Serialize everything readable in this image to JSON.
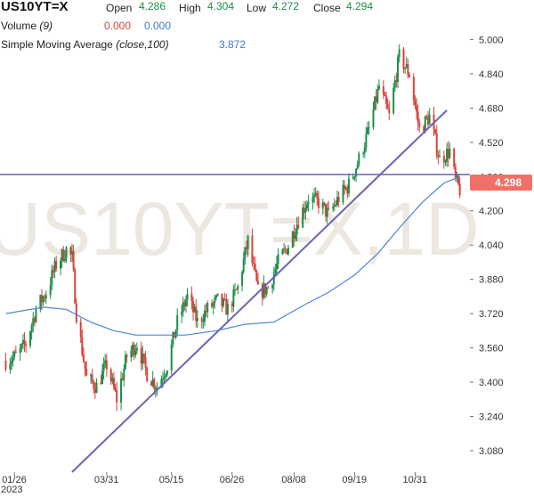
{
  "header": {
    "symbol": "US10YT=X",
    "open_label": "Open",
    "open": "4.286",
    "high_label": "High",
    "high": "4.304",
    "low_label": "Low",
    "low": "4.272",
    "close_label": "Close",
    "close": "4.294",
    "volume_label": "Volume",
    "volume_period": "(9)",
    "volume_val1": "0.000",
    "volume_val2": "0.000",
    "sma_label": "Simple Moving Average",
    "sma_params": "(close,100)",
    "sma_value": "3.872"
  },
  "watermark": "US10YT=X,1D",
  "price_badge": "4.298",
  "colors": {
    "up": "#1a8f4a",
    "down": "#d9423a",
    "sma": "#4a86d8",
    "trendline": "#6b63b5",
    "badge": "#f07067"
  },
  "chart_data": {
    "type": "candlestick",
    "interval": "1D",
    "ylim": [
      2.98,
      5.06
    ],
    "yticks": [
      "5.000",
      "4.840",
      "4.680",
      "4.520",
      "4.360",
      "4.200",
      "4.040",
      "3.880",
      "3.720",
      "3.560",
      "3.400",
      "3.240",
      "3.080"
    ],
    "xticks": [
      "01/26",
      "03/31",
      "05/15",
      "06/26",
      "08/08",
      "09/19",
      "10/31"
    ],
    "year_label": "2023",
    "horizontal_line": 4.37,
    "trendline": {
      "from": [
        "2023-03-07",
        2.98
      ],
      "to": [
        "2023-11-22",
        4.67
      ]
    },
    "sma_100": [
      [
        "2023-01-20",
        3.72
      ],
      [
        "2023-02-15",
        3.75
      ],
      [
        "2023-03-03",
        3.74
      ],
      [
        "2023-03-20",
        3.68
      ],
      [
        "2023-04-05",
        3.64
      ],
      [
        "2023-04-20",
        3.62
      ],
      [
        "2023-05-05",
        3.62
      ],
      [
        "2023-05-25",
        3.62
      ],
      [
        "2023-06-15",
        3.64
      ],
      [
        "2023-07-05",
        3.67
      ],
      [
        "2023-07-25",
        3.68
      ],
      [
        "2023-08-15",
        3.76
      ],
      [
        "2023-09-01",
        3.82
      ],
      [
        "2023-09-19",
        3.9
      ],
      [
        "2023-10-05",
        4.0
      ],
      [
        "2023-10-20",
        4.12
      ],
      [
        "2023-11-05",
        4.24
      ],
      [
        "2023-11-20",
        4.33
      ],
      [
        "2023-12-01",
        4.36
      ]
    ],
    "series": [
      {
        "date": "2023-01-20",
        "close": 3.5
      },
      {
        "date": "2023-01-27",
        "close": 3.52
      },
      {
        "date": "2023-02-03",
        "close": 3.58
      },
      {
        "date": "2023-02-10",
        "close": 3.74
      },
      {
        "date": "2023-02-17",
        "close": 3.82
      },
      {
        "date": "2023-02-24",
        "close": 3.95
      },
      {
        "date": "2023-03-03",
        "close": 4.02
      },
      {
        "date": "2023-03-07",
        "close": 3.98
      },
      {
        "date": "2023-03-10",
        "close": 3.72
      },
      {
        "date": "2023-03-17",
        "close": 3.42
      },
      {
        "date": "2023-03-24",
        "close": 3.38
      },
      {
        "date": "2023-03-31",
        "close": 3.48
      },
      {
        "date": "2023-04-07",
        "close": 3.32
      },
      {
        "date": "2023-04-14",
        "close": 3.52
      },
      {
        "date": "2023-04-21",
        "close": 3.58
      },
      {
        "date": "2023-04-28",
        "close": 3.44
      },
      {
        "date": "2023-05-05",
        "close": 3.38
      },
      {
        "date": "2023-05-12",
        "close": 3.48
      },
      {
        "date": "2023-05-19",
        "close": 3.68
      },
      {
        "date": "2023-05-26",
        "close": 3.8
      },
      {
        "date": "2023-06-02",
        "close": 3.68
      },
      {
        "date": "2023-06-09",
        "close": 3.74
      },
      {
        "date": "2023-06-16",
        "close": 3.78
      },
      {
        "date": "2023-06-23",
        "close": 3.74
      },
      {
        "date": "2023-06-30",
        "close": 3.84
      },
      {
        "date": "2023-07-07",
        "close": 4.06
      },
      {
        "date": "2023-07-14",
        "close": 3.82
      },
      {
        "date": "2023-07-21",
        "close": 3.84
      },
      {
        "date": "2023-07-28",
        "close": 3.96
      },
      {
        "date": "2023-08-04",
        "close": 4.04
      },
      {
        "date": "2023-08-11",
        "close": 4.16
      },
      {
        "date": "2023-08-18",
        "close": 4.26
      },
      {
        "date": "2023-08-25",
        "close": 4.24
      },
      {
        "date": "2023-09-01",
        "close": 4.18
      },
      {
        "date": "2023-09-08",
        "close": 4.26
      },
      {
        "date": "2023-09-15",
        "close": 4.32
      },
      {
        "date": "2023-09-22",
        "close": 4.44
      },
      {
        "date": "2023-09-29",
        "close": 4.58
      },
      {
        "date": "2023-10-06",
        "close": 4.78
      },
      {
        "date": "2023-10-13",
        "close": 4.64
      },
      {
        "date": "2023-10-20",
        "close": 4.92
      },
      {
        "date": "2023-10-27",
        "close": 4.84
      },
      {
        "date": "2023-11-03",
        "close": 4.58
      },
      {
        "date": "2023-11-10",
        "close": 4.64
      },
      {
        "date": "2023-11-17",
        "close": 4.44
      },
      {
        "date": "2023-11-24",
        "close": 4.48
      },
      {
        "date": "2023-11-28",
        "close": 4.34
      },
      {
        "date": "2023-12-01",
        "close": 4.298
      }
    ]
  }
}
